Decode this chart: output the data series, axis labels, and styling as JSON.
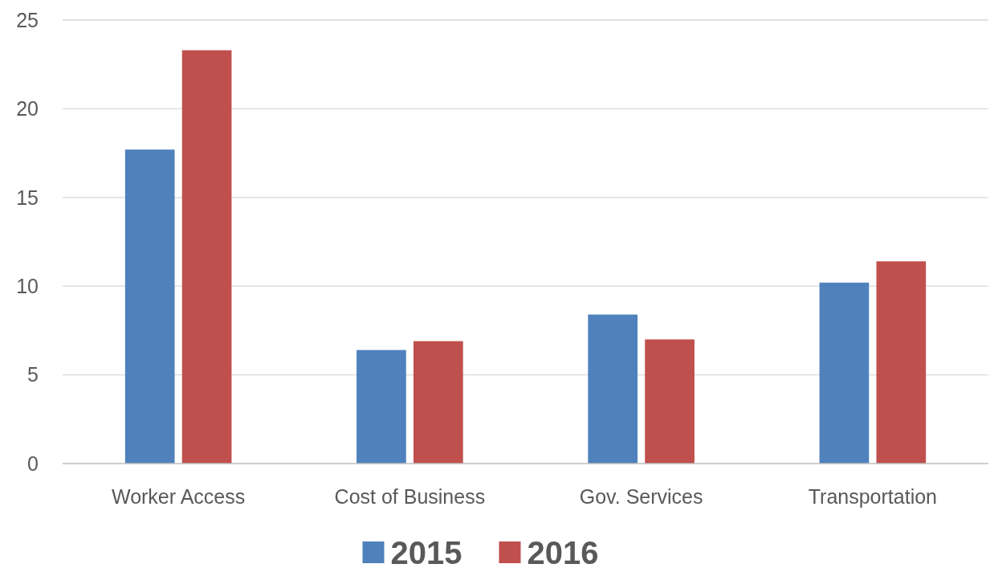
{
  "chart_data": {
    "type": "bar",
    "categories": [
      "Worker Access",
      "Cost of Business",
      "Gov. Services",
      "Transportation"
    ],
    "series": [
      {
        "name": "2015",
        "color": "#4f81bd",
        "values": [
          17.7,
          6.4,
          8.4,
          10.2
        ]
      },
      {
        "name": "2016",
        "color": "#c0504d",
        "values": [
          23.3,
          6.9,
          7.0,
          11.4
        ]
      }
    ],
    "ylim": [
      0,
      25
    ],
    "yticks": [
      0,
      5,
      10,
      15,
      20,
      25
    ],
    "grid": "y",
    "legend": "bottom"
  }
}
